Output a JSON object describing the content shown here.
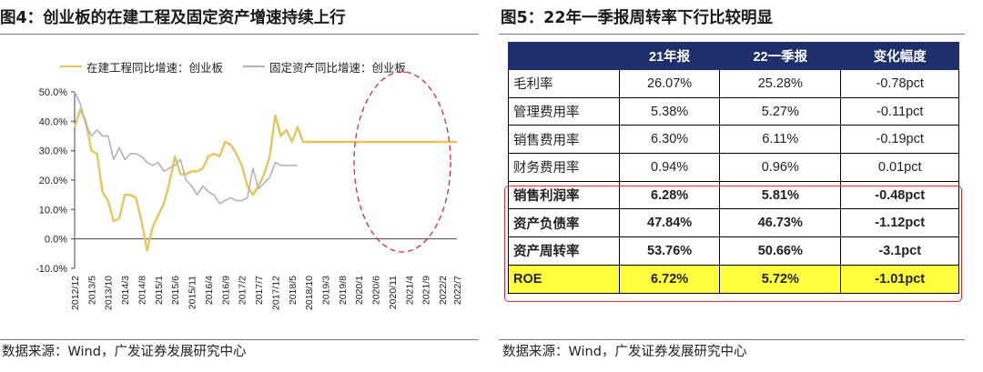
{
  "left": {
    "title": "图4：创业板的在建工程及固定资产增速持续上行",
    "source": "数据来源：Wind，广发证券发展研究中心"
  },
  "right": {
    "title": "图5：22年一季报周转率下行比较明显",
    "source": "数据来源：Wind，广发证券发展研究中心",
    "table": {
      "headers": [
        "",
        "21年报",
        "22一季报",
        "变化幅度"
      ],
      "rows": [
        {
          "metric": "毛利率",
          "a": "26.07%",
          "b": "25.28%",
          "change": "-0.78pct"
        },
        {
          "metric": "管理费用率",
          "a": "5.38%",
          "b": "5.27%",
          "change": "-0.11pct"
        },
        {
          "metric": "销售费用率",
          "a": "6.30%",
          "b": "6.11%",
          "change": "-0.19pct"
        },
        {
          "metric": "财务费用率",
          "a": "0.94%",
          "b": "0.96%",
          "change": "0.01pct"
        },
        {
          "metric": "销售利润率",
          "a": "6.28%",
          "b": "5.81%",
          "change": "-0.48pct"
        },
        {
          "metric": "资产负债率",
          "a": "47.84%",
          "b": "46.73%",
          "change": "-1.12pct"
        },
        {
          "metric": "资产周转率",
          "a": "53.76%",
          "b": "50.66%",
          "change": "-3.1pct"
        },
        {
          "metric": "ROE",
          "a": "6.72%",
          "b": "5.72%",
          "change": "-1.01pct"
        }
      ]
    }
  },
  "chart_data": {
    "type": "line",
    "title": "图4：创业板的在建工程及固定资产增速持续上行",
    "xlabel": "",
    "ylabel": "",
    "ylim": [
      -0.1,
      0.5
    ],
    "ytick_values": [
      -0.1,
      0.0,
      0.1,
      0.2,
      0.3,
      0.4,
      0.5
    ],
    "ytick_labels": [
      "-10.0%",
      "0.0%",
      "10.0%",
      "20.0%",
      "30.0%",
      "40.0%",
      "50.0%"
    ],
    "x_count": 35,
    "x_tick_indices": [
      0,
      2,
      4,
      6,
      8,
      10,
      12,
      14,
      16,
      18,
      20,
      22,
      24,
      26,
      28,
      30,
      31,
      32,
      33,
      34
    ],
    "x_tick_labels": [
      "2012/12",
      "2013/5",
      "2013/10",
      "2014/3",
      "2014/8",
      "2015/1",
      "2015/6",
      "2015/11",
      "2016/4",
      "2016/9",
      "2017/2",
      "2017/7",
      "2017/12",
      "2018/5",
      "2018/10",
      "2019/3",
      "2019/8",
      "2020/1",
      "2020/6",
      "2020/11",
      "2021/4",
      "2021/9",
      "2022/2",
      "2022/7"
    ],
    "x_label_indices": [
      0,
      1.5,
      3,
      4.5,
      6,
      7.5,
      9,
      10.5,
      12,
      13.5,
      15,
      16.5,
      18,
      19.5,
      21,
      22.5,
      24,
      25.5,
      27,
      28.5,
      30,
      31.5,
      33,
      34.3
    ],
    "legend_position": "top-left",
    "annotation": "red dashed ellipse around 2020/6–2022/7",
    "series": [
      {
        "name": "在建工程同比增速：创业板",
        "color": "#e8c55a",
        "x_index": [
          0,
          0.5,
          1,
          1.5,
          2,
          2.5,
          3,
          3.5,
          4,
          4.5,
          5,
          5.5,
          6,
          6.5,
          7,
          7.5,
          8,
          8.5,
          9,
          9.5,
          10,
          10.5,
          11,
          11.5,
          12,
          12.5,
          13,
          13.5,
          14,
          14.5,
          15,
          15.5,
          16,
          16.5,
          17,
          17.5,
          18,
          18.5,
          19,
          19.5,
          20,
          20.5,
          21,
          21.5,
          22,
          22.5,
          23,
          23.5,
          24,
          24.5,
          25,
          25.5,
          26,
          26.5,
          27,
          27.5,
          28,
          28.5,
          29,
          29.5,
          30,
          30.5,
          31,
          31.5,
          32,
          32.5,
          33,
          33.5,
          34,
          34.3
        ],
        "values": [
          0.38,
          0.44,
          0.4,
          0.3,
          0.29,
          0.16,
          0.13,
          0.06,
          0.07,
          0.15,
          0.15,
          0.14,
          0.06,
          -0.04,
          0.04,
          0.08,
          0.12,
          0.19,
          0.28,
          0.22,
          0.22,
          0.23,
          0.23,
          0.24,
          0.28,
          0.29,
          0.28,
          0.33,
          0.32,
          0.29,
          0.25,
          0.18,
          0.15,
          0.18,
          0.22,
          0.28,
          0.42,
          0.35,
          0.37,
          0.33,
          0.38,
          0.33,
          0.33,
          0.33,
          0.33,
          0.33,
          0.33,
          0.33,
          0.33,
          0.33,
          0.33,
          0.33,
          0.33,
          0.33,
          0.33,
          0.33,
          0.33,
          0.33,
          0.33,
          0.33,
          0.33,
          0.33,
          0.33,
          0.33,
          0.33,
          0.33,
          0.33,
          0.33,
          0.33,
          0.33
        ]
      },
      {
        "name": "固定资产同比增速：创业板",
        "color": "#b3b3b3",
        "x_index": [
          0,
          0.5,
          1,
          1.5,
          2,
          2.5,
          3,
          3.5,
          4,
          4.5,
          5,
          5.5,
          6,
          6.5,
          7,
          7.5,
          8,
          8.5,
          9,
          9.5,
          10,
          10.5,
          11,
          11.5,
          12,
          12.5,
          13,
          13.5,
          14,
          14.5,
          15,
          15.5,
          16,
          16.5,
          17,
          17.5,
          18,
          18.5,
          19,
          19.5,
          20
        ],
        "values": [
          0.5,
          0.46,
          0.39,
          0.35,
          0.37,
          0.35,
          0.35,
          0.27,
          0.31,
          0.27,
          0.29,
          0.29,
          0.28,
          0.26,
          0.25,
          0.26,
          0.23,
          0.24,
          0.25,
          0.27,
          0.2,
          0.18,
          0.15,
          0.18,
          0.16,
          0.15,
          0.12,
          0.13,
          0.14,
          0.13,
          0.13,
          0.14,
          0.24,
          0.17,
          0.19,
          0.21,
          0.26,
          0.25,
          0.25,
          0.25,
          0.25
        ]
      }
    ]
  }
}
